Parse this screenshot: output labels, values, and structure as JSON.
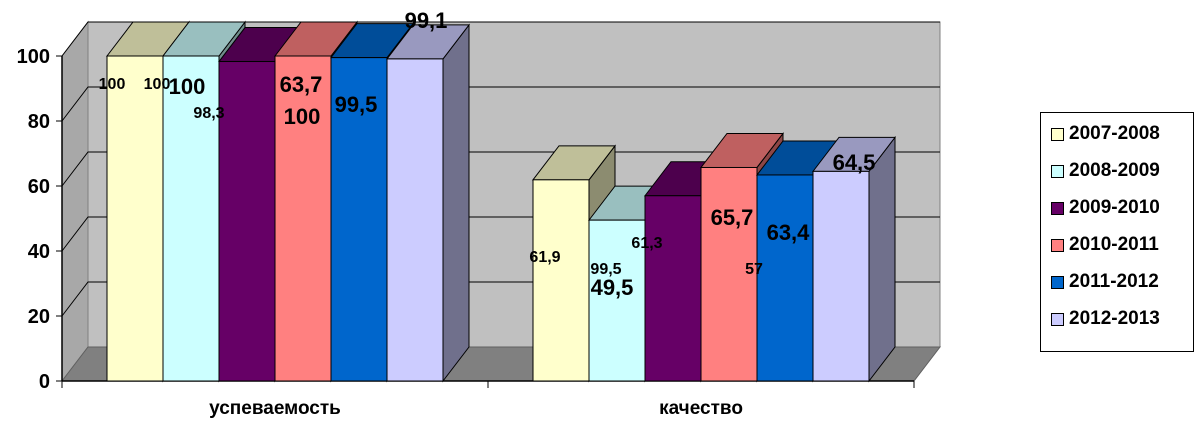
{
  "chart_data": {
    "type": "bar",
    "style": "3d-clustered-column",
    "categories": [
      "успеваемость",
      "качество"
    ],
    "ylim": [
      0,
      100
    ],
    "yticks": [
      "0",
      "20",
      "40",
      "60",
      "80",
      "100"
    ],
    "grid": true,
    "legend_position": "right",
    "series": [
      {
        "name": "2007-2008",
        "color": "#FFFFCC",
        "values": [
          100,
          61.9
        ],
        "labels": [
          "100",
          "61,9"
        ]
      },
      {
        "name": "2008-2009",
        "color": "#CCFFFF",
        "values": [
          100,
          49.5
        ],
        "labels": [
          "100",
          "49,5"
        ]
      },
      {
        "name": "2009-2010",
        "color": "#660066",
        "values": [
          98.3,
          57
        ],
        "labels": [
          "98,3",
          "57"
        ]
      },
      {
        "name": "2010-2011",
        "color": "#FF8080",
        "values": [
          100,
          65.7
        ],
        "labels": [
          "100",
          "65,7"
        ]
      },
      {
        "name": "2011-2012",
        "color": "#0066CC",
        "values": [
          99.5,
          63.4
        ],
        "labels": [
          "99,5",
          "63,4"
        ]
      },
      {
        "name": "2012-2013",
        "color": "#CCCCFF",
        "values": [
          99.1,
          64.5
        ],
        "labels": [
          "99,1",
          "64,5"
        ]
      }
    ],
    "extra_labels": [
      "100",
      "63,7",
      "61,3",
      "99,5"
    ]
  }
}
